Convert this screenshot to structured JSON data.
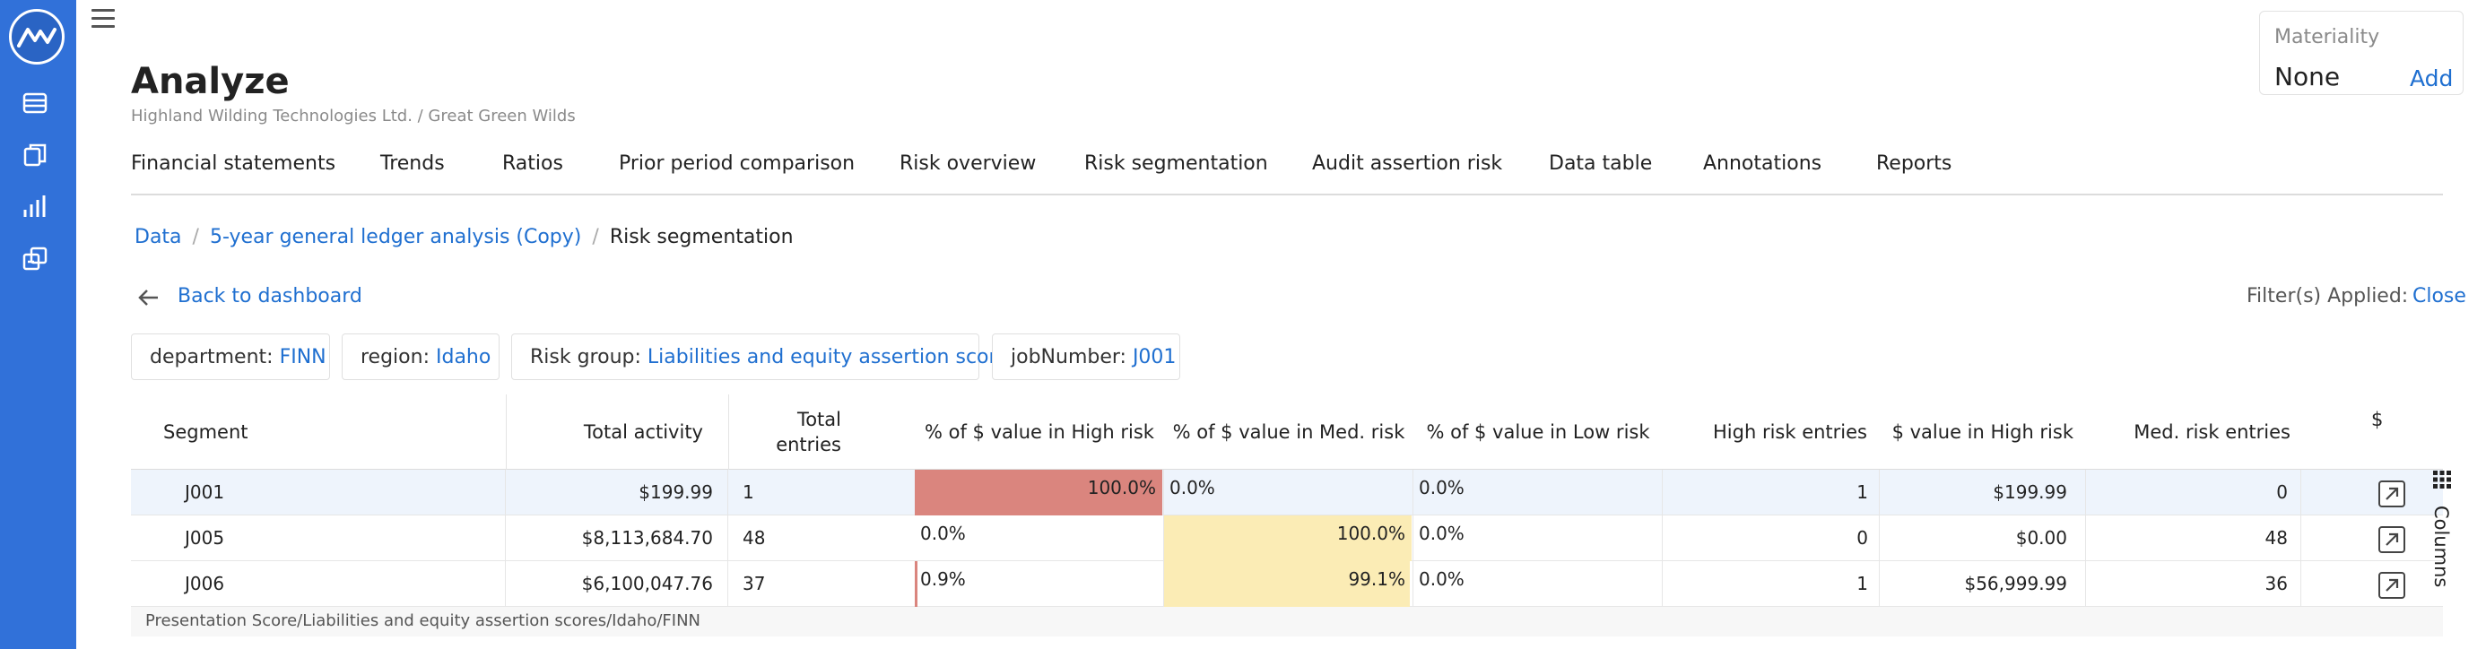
{
  "colors": {
    "accent": "#1f6fd0",
    "rail": "#3171d9",
    "high_bar": "#da857e",
    "med_bar": "#fbecb5",
    "low_bar": "#9bd3a5"
  },
  "app": {
    "logo_icon": "mountain-logo-icon",
    "menu_icon": "hamburger-icon"
  },
  "rail": {
    "items": [
      {
        "name": "data-icon"
      },
      {
        "name": "documents-icon"
      },
      {
        "name": "analytics-icon"
      },
      {
        "name": "transfer-icon"
      }
    ]
  },
  "header": {
    "title": "Analyze",
    "subtitle": "Highland Wilding Technologies Ltd. / Great Green Wilds"
  },
  "materiality": {
    "label": "Materiality",
    "value": "None",
    "add_label": "Add"
  },
  "tabs": [
    {
      "label": "Financial statements"
    },
    {
      "label": "Trends"
    },
    {
      "label": "Ratios"
    },
    {
      "label": "Prior period comparison"
    },
    {
      "label": "Risk overview"
    },
    {
      "label": "Risk segmentation"
    },
    {
      "label": "Audit assertion risk"
    },
    {
      "label": "Data table"
    },
    {
      "label": "Annotations"
    },
    {
      "label": "Reports"
    }
  ],
  "breadcrumb": [
    {
      "label": "Data"
    },
    {
      "label": "5-year general ledger analysis (Copy)"
    },
    {
      "label": "Risk segmentation"
    }
  ],
  "back_label": "Back to dashboard",
  "filters": {
    "applied_label": "Filter(s) Applied:",
    "close_label": "Close",
    "chips": [
      {
        "key": "department: ",
        "value": "FINN"
      },
      {
        "key": "region: ",
        "value": "Idaho"
      },
      {
        "key": "Risk group: ",
        "value": "Liabilities and equity assertion scores"
      },
      {
        "key": "jobNumber: ",
        "value": "J001"
      }
    ]
  },
  "table": {
    "columns": [
      {
        "label": "Segment"
      },
      {
        "label": "Total activity"
      },
      {
        "label": "Total entries"
      },
      {
        "label": "% of $ value in High risk"
      },
      {
        "label": "% of $ value in Med. risk"
      },
      {
        "label": "% of $ value in Low risk"
      },
      {
        "label": "High risk entries"
      },
      {
        "label": "$ value in High risk"
      },
      {
        "label": "Med. risk entries"
      },
      {
        "label": "$"
      }
    ],
    "rows": [
      {
        "segment": "J001",
        "total_activity": "$199.99",
        "total_entries": "1",
        "high_pct": "100.0%",
        "high_frac": 1.0,
        "med_pct": "0.0%",
        "med_frac": 0.0,
        "low_pct": "0.0%",
        "low_frac": 0.0,
        "high_entries": "1",
        "high_value": "$199.99",
        "med_entries": "0",
        "selected": true
      },
      {
        "segment": "J005",
        "total_activity": "$8,113,684.70",
        "total_entries": "48",
        "high_pct": "0.0%",
        "high_frac": 0.0,
        "med_pct": "100.0%",
        "med_frac": 1.0,
        "low_pct": "0.0%",
        "low_frac": 0.0,
        "high_entries": "0",
        "high_value": "$0.00",
        "med_entries": "48",
        "selected": false
      },
      {
        "segment": "J006",
        "total_activity": "$6,100,047.76",
        "total_entries": "37",
        "high_pct": "0.9%",
        "high_frac": 0.009,
        "med_pct": "99.1%",
        "med_frac": 0.991,
        "low_pct": "0.0%",
        "low_frac": 0.0,
        "high_entries": "1",
        "high_value": "$56,999.99",
        "med_entries": "36",
        "selected": false
      }
    ],
    "columns_panel_label": "Columns",
    "columns_panel_icon": "grid-dots-icon",
    "open_icon": "open-external-icon",
    "footer": "Presentation Score/Liabilities and equity assertion scores/Idaho/FINN"
  }
}
